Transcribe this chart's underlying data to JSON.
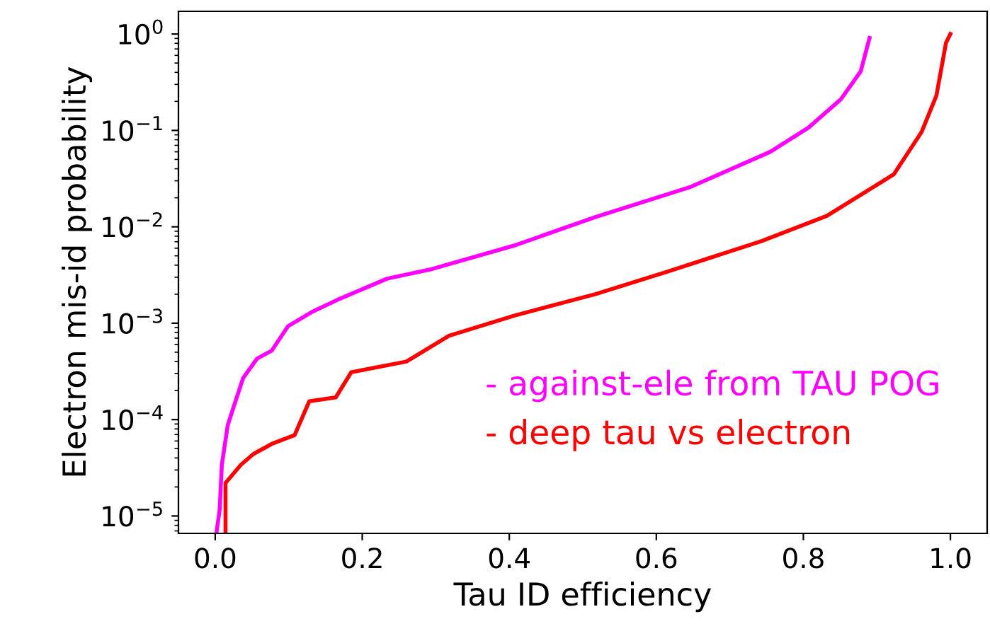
{
  "chart_data": {
    "type": "line",
    "xlabel": "Tau ID efficiency",
    "ylabel": "Electron mis-id probability",
    "log": "y",
    "xlim": [
      -0.05,
      1.05
    ],
    "ylim": [
      6.6e-06,
      1.72
    ],
    "xticks": [
      {
        "value": 0,
        "label": "0.0"
      },
      0.2,
      0.4,
      0.6,
      0.8,
      {
        "value": 1,
        "label": "1.0"
      }
    ],
    "yticks": [
      {
        "value": 1e-05,
        "label": "10$^{−5}$"
      },
      {
        "value": 0.0001,
        "label": "10$^{−4}$"
      },
      {
        "value": 0.001,
        "label": "10$^{−3}$"
      },
      {
        "value": 0.01,
        "label": "10$^{−2}$"
      },
      {
        "value": 0.1,
        "label": "10$^{−1}$"
      },
      {
        "value": 1,
        "label": "10$^{0}$"
      }
    ],
    "grid": false,
    "legend": "bottom right",
    "marker": "none",
    "line_style": "solid",
    "series": [
      {
        "name": "- against-ele from TAU POG",
        "color": "#ff00ff",
        "x": [
          0.002,
          0.006,
          0.009,
          0.017,
          0.025,
          0.038,
          0.057,
          0.077,
          0.099,
          0.131,
          0.17,
          0.234,
          0.292,
          0.407,
          0.517,
          0.647,
          0.755,
          0.807,
          0.851,
          0.878,
          0.89
        ],
        "values": [
          7e-06,
          1.15e-05,
          3.4e-05,
          8.7e-05,
          0.000135,
          0.00027,
          0.00043,
          0.00052,
          0.00093,
          0.0013,
          0.0018,
          0.0029,
          0.0036,
          0.0064,
          0.0126,
          0.026,
          0.06,
          0.107,
          0.21,
          0.41,
          0.91
        ]
      },
      {
        "name": "- deep tau vs electron",
        "color": "#ff0000",
        "x": [
          0.014,
          0.014,
          0.035,
          0.052,
          0.077,
          0.108,
          0.128,
          0.164,
          0.185,
          0.26,
          0.318,
          0.407,
          0.517,
          0.614,
          0.743,
          0.832,
          0.923,
          0.961,
          0.981,
          0.994,
          1.0
        ],
        "values": [
          7e-06,
          2.2e-05,
          3.4e-05,
          4.4e-05,
          5.6e-05,
          6.9e-05,
          0.000155,
          0.00017,
          0.00031,
          0.0004,
          0.00074,
          0.0012,
          0.002,
          0.0034,
          0.0071,
          0.013,
          0.035,
          0.097,
          0.23,
          0.81,
          1.0
        ]
      }
    ]
  }
}
